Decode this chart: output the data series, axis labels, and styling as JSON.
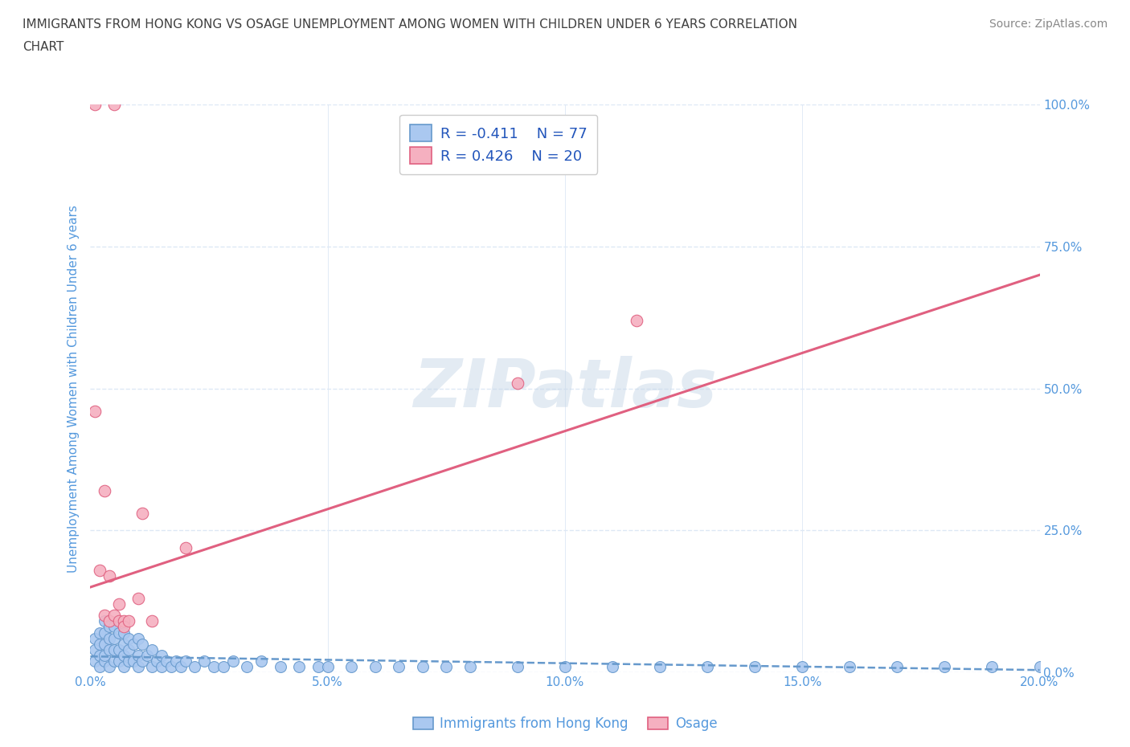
{
  "title_line1": "IMMIGRANTS FROM HONG KONG VS OSAGE UNEMPLOYMENT AMONG WOMEN WITH CHILDREN UNDER 6 YEARS CORRELATION",
  "title_line2": "CHART",
  "source": "Source: ZipAtlas.com",
  "ylabel": "Unemployment Among Women with Children Under 6 years",
  "xlabel_blue": "Immigrants from Hong Kong",
  "xlabel_pink": "Osage",
  "watermark": "ZIPatlas",
  "legend_blue": "R = -0.411    N = 77",
  "legend_pink": "R = 0.426    N = 20",
  "xlim": [
    0.0,
    0.2
  ],
  "ylim": [
    0.0,
    1.0
  ],
  "yticks": [
    0.0,
    0.25,
    0.5,
    0.75,
    1.0
  ],
  "ytick_labels": [
    "0.0%",
    "25.0%",
    "50.0%",
    "75.0%",
    "100.0%"
  ],
  "xticks": [
    0.0,
    0.05,
    0.1,
    0.15,
    0.2
  ],
  "xtick_labels": [
    "0.0%",
    "5.0%",
    "10.0%",
    "15.0%",
    "20.0%"
  ],
  "blue_color": "#aac8f0",
  "blue_edge_color": "#6699cc",
  "pink_color": "#f5b0c0",
  "pink_edge_color": "#e06080",
  "title_color": "#404040",
  "axis_label_color": "#5599dd",
  "tick_label_color": "#5599dd",
  "source_color": "#888888",
  "background_color": "#ffffff",
  "grid_color": "#dde8f5",
  "blue_scatter_x": [
    0.001,
    0.001,
    0.001,
    0.002,
    0.002,
    0.002,
    0.002,
    0.003,
    0.003,
    0.003,
    0.003,
    0.003,
    0.004,
    0.004,
    0.004,
    0.004,
    0.005,
    0.005,
    0.005,
    0.005,
    0.006,
    0.006,
    0.006,
    0.007,
    0.007,
    0.007,
    0.007,
    0.008,
    0.008,
    0.008,
    0.009,
    0.009,
    0.01,
    0.01,
    0.01,
    0.011,
    0.011,
    0.012,
    0.013,
    0.013,
    0.014,
    0.015,
    0.015,
    0.016,
    0.017,
    0.018,
    0.019,
    0.02,
    0.022,
    0.024,
    0.026,
    0.028,
    0.03,
    0.033,
    0.036,
    0.04,
    0.044,
    0.048,
    0.055,
    0.06,
    0.065,
    0.07,
    0.08,
    0.09,
    0.1,
    0.11,
    0.12,
    0.13,
    0.14,
    0.15,
    0.16,
    0.17,
    0.18,
    0.19,
    0.2,
    0.05,
    0.075
  ],
  "blue_scatter_y": [
    0.02,
    0.04,
    0.06,
    0.01,
    0.03,
    0.05,
    0.07,
    0.02,
    0.03,
    0.05,
    0.07,
    0.09,
    0.01,
    0.04,
    0.06,
    0.08,
    0.02,
    0.04,
    0.06,
    0.08,
    0.02,
    0.04,
    0.07,
    0.01,
    0.03,
    0.05,
    0.07,
    0.02,
    0.04,
    0.06,
    0.02,
    0.05,
    0.01,
    0.03,
    0.06,
    0.02,
    0.05,
    0.03,
    0.01,
    0.04,
    0.02,
    0.01,
    0.03,
    0.02,
    0.01,
    0.02,
    0.01,
    0.02,
    0.01,
    0.02,
    0.01,
    0.01,
    0.02,
    0.01,
    0.02,
    0.01,
    0.01,
    0.01,
    0.01,
    0.01,
    0.01,
    0.01,
    0.01,
    0.01,
    0.01,
    0.01,
    0.01,
    0.01,
    0.01,
    0.01,
    0.01,
    0.01,
    0.01,
    0.01,
    0.01,
    0.01,
    0.01
  ],
  "pink_scatter_x": [
    0.001,
    0.005,
    0.001,
    0.002,
    0.003,
    0.003,
    0.004,
    0.004,
    0.005,
    0.006,
    0.006,
    0.007,
    0.007,
    0.008,
    0.01,
    0.011,
    0.013,
    0.02,
    0.09,
    0.115
  ],
  "pink_scatter_y": [
    1.0,
    1.0,
    0.46,
    0.18,
    0.32,
    0.1,
    0.17,
    0.09,
    0.1,
    0.12,
    0.09,
    0.09,
    0.08,
    0.09,
    0.13,
    0.28,
    0.09,
    0.22,
    0.51,
    0.62
  ],
  "blue_trend_x": [
    0.0,
    0.2
  ],
  "blue_trend_y": [
    0.028,
    0.004
  ],
  "pink_trend_x": [
    0.0,
    0.2
  ],
  "pink_trend_y": [
    0.15,
    0.7
  ]
}
